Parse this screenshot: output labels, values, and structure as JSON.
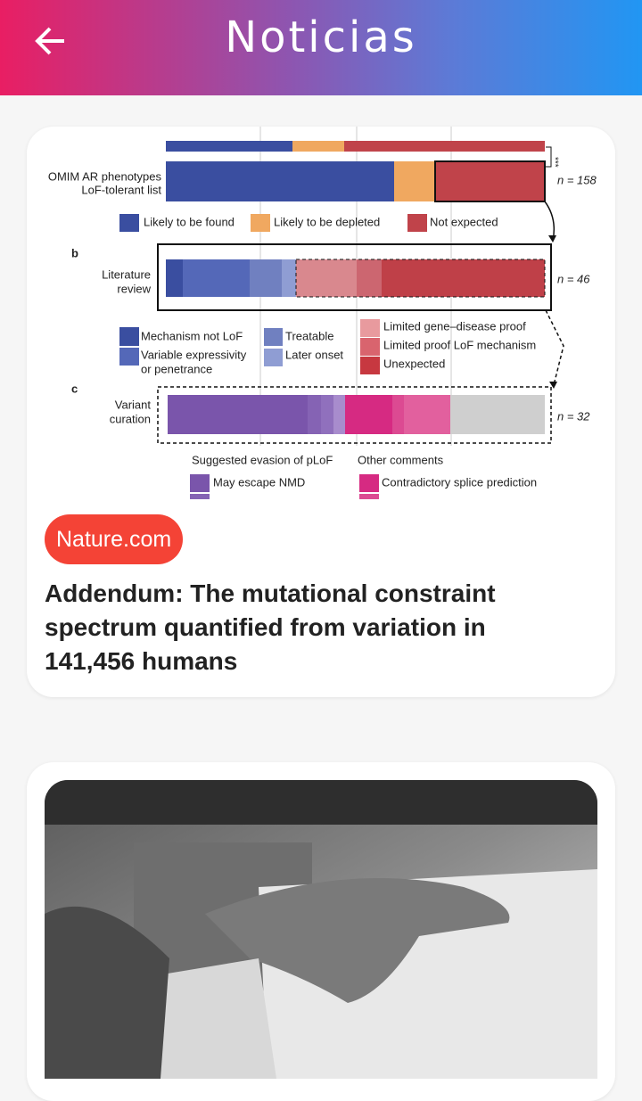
{
  "header": {
    "title": "Noticias"
  },
  "articles": [
    {
      "source": "Nature.com",
      "title": "Addendum: The mutational constraint spectrum quantified from variation in 141,456 humans",
      "figure": {
        "significance": "***",
        "row_a": {
          "label": [
            "OMIM AR phenotypes",
            "LoF-tolerant list"
          ],
          "n": "n = 158"
        },
        "legend_a": [
          "Likely to be found",
          "Likely to be depleted",
          "Not expected"
        ],
        "panel_b": "b",
        "row_b": {
          "label": [
            "Literature",
            "review"
          ],
          "n": "n = 46"
        },
        "legend_b": [
          "Mechanism not LoF",
          [
            "Variable expressivity",
            "or penetrance"
          ],
          "Treatable",
          "Later onset",
          "Limited gene–disease proof",
          "Limited proof LoF mechanism",
          "Unexpected"
        ],
        "panel_c": "c",
        "row_c": {
          "label": [
            "Variant",
            "curation"
          ],
          "n": "n = 32"
        },
        "legend_c_heads": [
          "Suggested evasion of pLoF",
          "Other comments"
        ],
        "legend_c": [
          "May escape NMD",
          "Contradictory splice prediction"
        ]
      }
    },
    {
      "image": "photo"
    }
  ]
}
